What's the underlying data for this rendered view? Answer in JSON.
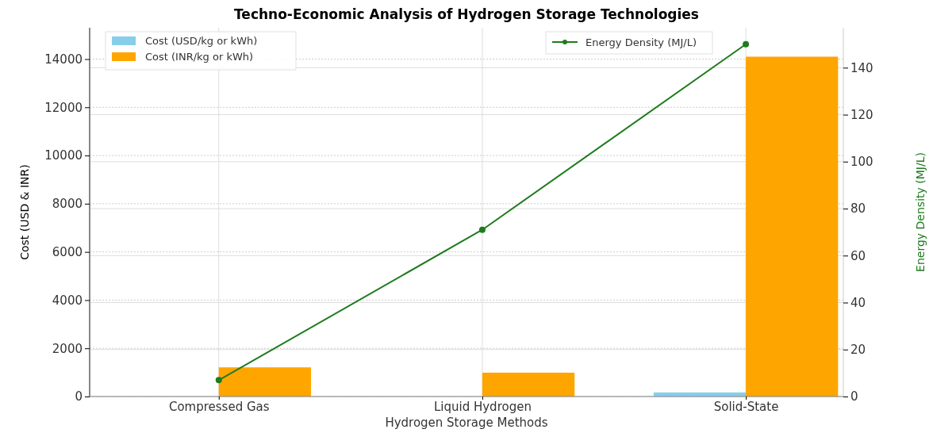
{
  "chart_data": {
    "type": "bar",
    "title": "Techno-Economic Analysis of Hydrogen Storage Technologies",
    "xlabel": "Hydrogen Storage Methods",
    "ylabel": "Cost (USD & INR)",
    "y2label": "Energy Density (MJ/L)",
    "categories": [
      "Compressed Gas",
      "Liquid Hydrogen",
      "Solid-State"
    ],
    "series": [
      {
        "name": "Cost (USD/kg or kWh)",
        "color": "#87ceeb",
        "values": [
          0,
          0,
          170
        ]
      },
      {
        "name": "Cost (INR/kg or kWh)",
        "color": "#ffa500",
        "values": [
          1210,
          990,
          14100
        ]
      },
      {
        "name": "Energy Density (MJ/L)",
        "type": "line",
        "axis": "y2",
        "color": "#1e7b1e",
        "values": [
          7,
          71,
          150
        ]
      }
    ],
    "ylim": [
      0,
      15300
    ],
    "yticks": [
      0,
      2000,
      4000,
      6000,
      8000,
      10000,
      12000,
      14000
    ],
    "y2lim": [
      0,
      157
    ],
    "y2ticks": [
      0,
      20,
      40,
      60,
      80,
      100,
      120,
      140
    ],
    "grid": true,
    "legend": "top",
    "marker": "circle",
    "line_style": "solid"
  }
}
